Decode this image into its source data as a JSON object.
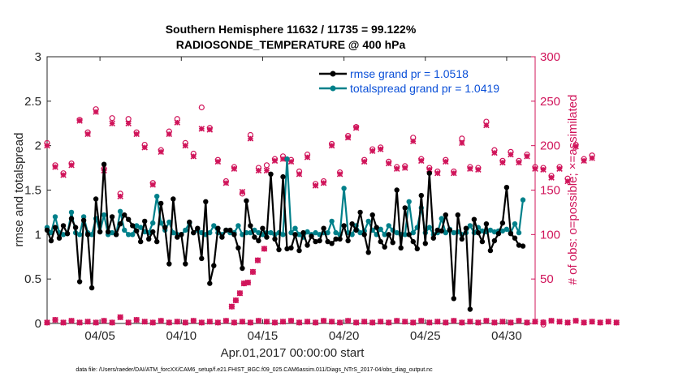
{
  "chart_data": {
    "type": "line",
    "title_line1": "Southern Hemisphere 11632 / 11735 = 99.122%",
    "title_line2": "RADIOSONDE_TEMPERATURE @ 400 hPa",
    "xlabel": "Apr.01,2017 00:00:00 start",
    "ylabel_left": "rmse and totalspread",
    "ylabel_right": "# of obs: o=possible; ×=assimilated",
    "footnote": "data file: /Users/raeder/DAI/ATM_forcXX/CAM6_setup/f.e21.FHIST_BGC.f09_025.CAM6assim.011/Diags_NTrS_2017-04/obs_diag_output.nc",
    "x_range": [
      0.75,
      30.75
    ],
    "ylim_left": [
      0,
      3
    ],
    "ylim_right": [
      0,
      300
    ],
    "x_ticks": [
      {
        "x": 4.0,
        "label": "04/05"
      },
      {
        "x": 9.0,
        "label": "04/10"
      },
      {
        "x": 14.0,
        "label": "04/15"
      },
      {
        "x": 19.0,
        "label": "04/20"
      },
      {
        "x": 24.0,
        "label": "04/25"
      },
      {
        "x": 29.0,
        "label": "04/30"
      }
    ],
    "y_ticks_left": [
      "0",
      "0.5",
      "1",
      "1.5",
      "2",
      "2.5",
      "3"
    ],
    "y_ticks_right": [
      "0",
      "50",
      "100",
      "150",
      "200",
      "250",
      "300"
    ],
    "colors": {
      "rmse": "#000000",
      "spread": "#00808a",
      "obs": "#d0145a",
      "legend_text": "#0b50d8"
    },
    "series": [
      {
        "name": "rmse grand pr = 1.0518",
        "x_start": 0.75,
        "x_step": 0.25,
        "values": [
          1.05,
          0.93,
          1.08,
          0.96,
          1.1,
          1.01,
          1.18,
          1.08,
          0.47,
          1.16,
          1.0,
          0.4,
          1.4,
          1.03,
          1.79,
          1.03,
          1.2,
          1.0,
          1.12,
          1.22,
          1.17,
          1.1,
          1.04,
          0.92,
          1.15,
          0.95,
          1.03,
          0.92,
          1.35,
          1.08,
          0.67,
          1.4,
          0.97,
          1.0,
          0.67,
          1.14,
          1.02,
          1.07,
          0.73,
          1.37,
          0.45,
          0.65,
          1.07,
          0.97,
          1.05,
          1.05,
          1.0,
          0.85,
          0.62,
          1.38,
          1.1,
          0.97,
          0.93,
          1.07,
          0.97,
          1.68,
          0.95,
          0.83,
          1.65,
          0.84,
          0.85,
          1.0,
          0.82,
          1.02,
          0.88,
          0.98,
          0.92,
          0.93,
          1.07,
          0.92,
          0.9,
          0.95,
          0.95,
          1.1,
          0.93,
          1.12,
          1.05,
          1.25,
          1.0,
          0.8,
          1.22,
          1.08,
          0.92,
          0.86,
          1.0,
          0.91,
          1.5,
          0.85,
          1.3,
          1.0,
          0.92,
          0.84,
          1.44,
          0.9,
          1.69,
          0.96,
          1.05,
          1.04,
          1.22,
          1.05,
          0.28,
          1.22,
          0.95,
          1.07,
          0.16,
          1.17,
          1.02,
          0.92,
          1.12,
          0.82,
          0.93,
          1.01,
          1.13,
          1.53,
          1.01,
          0.96,
          0.88,
          0.87
        ]
      },
      {
        "name": "totalspread grand pr = 1.0419",
        "x_start": 0.75,
        "x_step": 0.25,
        "values": [
          1.08,
          1.02,
          1.2,
          1.02,
          1.0,
          1.01,
          1.25,
          1.02,
          1.0,
          1.2,
          1.02,
          1.0,
          1.18,
          1.03,
          1.22,
          1.0,
          1.02,
          1.0,
          1.26,
          1.05,
          1.0,
          1.0,
          1.1,
          1.08,
          1.03,
          1.02,
          1.13,
          1.43,
          1.13,
          1.05,
          1.14,
          1.02,
          1.0,
          1.0,
          1.05,
          1.13,
          1.02,
          1.05,
          1.02,
          1.0,
          1.02,
          1.1,
          1.02,
          1.0,
          1.05,
          1.02,
          1.02,
          1.1,
          1.0,
          1.02,
          1.02,
          1.05,
          1.02,
          1.0,
          1.02,
          1.02,
          1.0,
          1.02,
          1.0,
          1.85,
          1.02,
          1.07,
          1.0,
          0.97,
          1.03,
          1.0,
          1.02,
          1.0,
          1.02,
          1.02,
          1.15,
          1.02,
          1.0,
          1.52,
          1.02,
          1.0,
          1.1,
          1.02,
          1.04,
          1.15,
          1.05,
          1.0,
          1.06,
          1.0,
          1.1,
          1.05,
          1.02,
          1.0,
          1.0,
          1.37,
          1.02,
          1.08,
          1.3,
          1.02,
          1.08,
          1.0,
          1.02,
          1.18,
          1.02,
          1.06,
          1.02,
          1.03,
          1.0,
          1.02,
          1.1,
          1.02,
          1.08,
          1.04,
          1.03,
          1.05,
          1.03,
          1.04,
          1.04,
          1.06,
          1.02,
          1.12,
          1.02,
          1.39
        ]
      }
    ],
    "obs_possible_hi": {
      "x_start": 0.75,
      "x_step": 0.5,
      "values": [
        203,
        178,
        169,
        180,
        229,
        215,
        241,
        174,
        231,
        146,
        230,
        215,
        201,
        158,
        195,
        216,
        230,
        203,
        191,
        243,
        220,
        184,
        160,
        176,
        146,
        212,
        175,
        178,
        185,
        188,
        184,
        171,
        190,
        157,
        160,
        202,
        170,
        211,
        221,
        184,
        196,
        198,
        182,
        176,
        177,
        209,
        185,
        175,
        171,
        184,
        171,
        208,
        176,
        175,
        227,
        195,
        183,
        193,
        183,
        190,
        176,
        175,
        166,
        176,
        163,
        201,
        185,
        189
      ]
    },
    "obs_assimilated_hi": {
      "x_start": 0.75,
      "x_step": 0.5,
      "values": [
        200,
        176,
        167,
        178,
        228,
        213,
        238,
        172,
        225,
        143,
        225,
        213,
        198,
        156,
        193,
        213,
        226,
        200,
        188,
        219,
        218,
        182,
        158,
        174,
        148,
        208,
        172,
        172,
        183,
        185,
        182,
        168,
        187,
        155,
        158,
        200,
        168,
        209,
        220,
        182,
        194,
        196,
        180,
        174,
        175,
        205,
        183,
        173,
        169,
        182,
        169,
        203,
        174,
        173,
        223,
        192,
        181,
        190,
        181,
        188,
        174,
        173,
        164,
        174,
        160,
        199,
        183,
        186
      ]
    },
    "obs_assimilated_mid": {
      "x_values": [
        12.1,
        12.35,
        12.6,
        12.85,
        13.1,
        13.4,
        13.7,
        14.1
      ],
      "values": [
        19,
        26,
        34,
        45,
        46,
        58,
        71,
        84
      ]
    },
    "obs_possible_lo": {
      "x_start": 0.75,
      "x_step": 0.5,
      "values": [
        1,
        4,
        1,
        3,
        1,
        2,
        1,
        3,
        1,
        7,
        1,
        4,
        2,
        1,
        3,
        1,
        2,
        1,
        3,
        1,
        2,
        1,
        3,
        1,
        2,
        1,
        3,
        2,
        1,
        2,
        3,
        1,
        2,
        1,
        3,
        2,
        1,
        3,
        1,
        2,
        1,
        2,
        1,
        3,
        2,
        1,
        3,
        1,
        2,
        1,
        3,
        1,
        2,
        1,
        3,
        1,
        2,
        1,
        3,
        1,
        2,
        1,
        3,
        2,
        1,
        3,
        1,
        2,
        1,
        2,
        1
      ]
    }
  }
}
